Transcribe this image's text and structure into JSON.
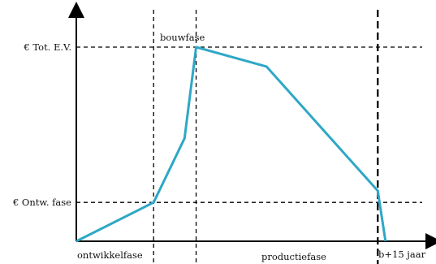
{
  "chart_data": {
    "type": "line",
    "title": "",
    "xlabel": "",
    "ylabel": "",
    "x_ticks": [
      {
        "label": "ontwikkelfase",
        "x": 0
      },
      {
        "label": "bouwfase",
        "x": 1
      },
      {
        "label": "productiefase",
        "x": 2
      },
      {
        "label": "b+15 jaar",
        "x": 3
      }
    ],
    "y_ticks": [
      {
        "label": "€ Ontw. fase",
        "y": 0.2
      },
      {
        "label": "€ Tot. E.V.",
        "y": 1.0
      }
    ],
    "series": [
      {
        "color": "#2fa7c6",
        "points": [
          {
            "x": 0,
            "y": 0
          },
          {
            "x": 1,
            "y": 0.2
          },
          {
            "x": 1.4,
            "y": 0.53
          },
          {
            "x": 1.55,
            "y": 1.0
          },
          {
            "x": 2.46,
            "y": 0.9
          },
          {
            "x": 3.9,
            "y": 0.26
          },
          {
            "x": 4.0,
            "y": 0
          }
        ]
      }
    ],
    "vertical_lines_x": [
      1,
      1.55,
      3.9
    ],
    "horizontal_lines_y": [
      0.2,
      1.0
    ],
    "xlim": [
      0,
      4.7
    ],
    "ylim": [
      0,
      1.2
    ],
    "grid": false
  }
}
